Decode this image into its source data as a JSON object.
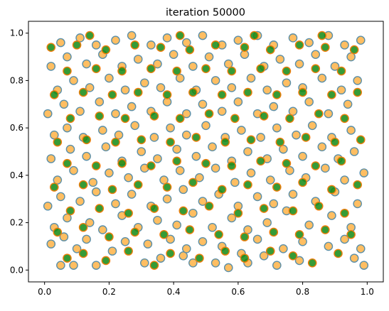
{
  "chart_data": {
    "type": "scatter",
    "title": "iteration 50000",
    "xlabel": "",
    "ylabel": "",
    "xlim": [
      -0.05,
      1.05
    ],
    "ylim": [
      -0.05,
      1.05
    ],
    "xticks": [
      0.0,
      0.2,
      0.4,
      0.6,
      0.8,
      1.0
    ],
    "yticks": [
      0.0,
      0.2,
      0.4,
      0.6,
      0.8,
      1.0
    ],
    "xtick_labels": [
      "0.0",
      "0.2",
      "0.4",
      "0.6",
      "0.8",
      "1.0"
    ],
    "ytick_labels": [
      "0.0",
      "0.2",
      "0.4",
      "0.6",
      "0.8",
      "1.0"
    ],
    "grid": false,
    "legend": "none",
    "point_count": 1000,
    "series": [
      {
        "marker_fill": "#ffb347",
        "marker_edge": "#5b8fa8",
        "values": [
          [
            0.05,
            0.02
          ],
          [
            0.09,
            0.02
          ],
          [
            0.16,
            0.02
          ],
          [
            0.31,
            0.03
          ],
          [
            0.36,
            0.05
          ],
          [
            0.43,
            0.06
          ],
          [
            0.46,
            0.03
          ],
          [
            0.53,
            0.03
          ],
          [
            0.57,
            0.01
          ],
          [
            0.63,
            0.03
          ],
          [
            0.68,
            0.06
          ],
          [
            0.72,
            0.02
          ],
          [
            0.79,
            0.04
          ],
          [
            0.96,
            0.05
          ],
          [
            0.99,
            0.02
          ],
          [
            0.02,
            0.11
          ],
          [
            0.06,
            0.14
          ],
          [
            0.1,
            0.09
          ],
          [
            0.13,
            0.13
          ],
          [
            0.21,
            0.08
          ],
          [
            0.25,
            0.12
          ],
          [
            0.32,
            0.11
          ],
          [
            0.39,
            0.13
          ],
          [
            0.44,
            0.09
          ],
          [
            0.49,
            0.12
          ],
          [
            0.55,
            0.1
          ],
          [
            0.61,
            0.07
          ],
          [
            0.66,
            0.13
          ],
          [
            0.74,
            0.09
          ],
          [
            0.8,
            0.12
          ],
          [
            0.88,
            0.1
          ],
          [
            0.93,
            0.13
          ],
          [
            0.98,
            0.09
          ],
          [
            0.03,
            0.18
          ],
          [
            0.07,
            0.22
          ],
          [
            0.14,
            0.2
          ],
          [
            0.18,
            0.17
          ],
          [
            0.24,
            0.23
          ],
          [
            0.29,
            0.18
          ],
          [
            0.35,
            0.21
          ],
          [
            0.41,
            0.19
          ],
          [
            0.46,
            0.24
          ],
          [
            0.52,
            0.18
          ],
          [
            0.58,
            0.22
          ],
          [
            0.63,
            0.17
          ],
          [
            0.69,
            0.2
          ],
          [
            0.75,
            0.25
          ],
          [
            0.82,
            0.19
          ],
          [
            0.89,
            0.23
          ],
          [
            0.95,
            0.18
          ],
          [
            0.01,
            0.27
          ],
          [
            0.05,
            0.31
          ],
          [
            0.11,
            0.29
          ],
          [
            0.16,
            0.33
          ],
          [
            0.22,
            0.28
          ],
          [
            0.27,
            0.32
          ],
          [
            0.33,
            0.27
          ],
          [
            0.38,
            0.3
          ],
          [
            0.43,
            0.34
          ],
          [
            0.49,
            0.29
          ],
          [
            0.54,
            0.32
          ],
          [
            0.6,
            0.27
          ],
          [
            0.66,
            0.31
          ],
          [
            0.71,
            0.28
          ],
          [
            0.77,
            0.32
          ],
          [
            0.84,
            0.29
          ],
          [
            0.9,
            0.33
          ],
          [
            0.97,
            0.28
          ],
          [
            0.04,
            0.38
          ],
          [
            0.09,
            0.42
          ],
          [
            0.15,
            0.37
          ],
          [
            0.2,
            0.41
          ],
          [
            0.26,
            0.39
          ],
          [
            0.31,
            0.43
          ],
          [
            0.37,
            0.38
          ],
          [
            0.42,
            0.42
          ],
          [
            0.48,
            0.39
          ],
          [
            0.53,
            0.43
          ],
          [
            0.59,
            0.37
          ],
          [
            0.64,
            0.41
          ],
          [
            0.7,
            0.38
          ],
          [
            0.76,
            0.42
          ],
          [
            0.81,
            0.39
          ],
          [
            0.87,
            0.43
          ],
          [
            0.93,
            0.38
          ],
          [
            0.99,
            0.41
          ],
          [
            0.02,
            0.47
          ],
          [
            0.08,
            0.51
          ],
          [
            0.13,
            0.48
          ],
          [
            0.19,
            0.52
          ],
          [
            0.24,
            0.46
          ],
          [
            0.3,
            0.5
          ],
          [
            0.35,
            0.47
          ],
          [
            0.41,
            0.51
          ],
          [
            0.47,
            0.48
          ],
          [
            0.52,
            0.52
          ],
          [
            0.58,
            0.46
          ],
          [
            0.63,
            0.5
          ],
          [
            0.69,
            0.47
          ],
          [
            0.74,
            0.51
          ],
          [
            0.8,
            0.48
          ],
          [
            0.86,
            0.52
          ],
          [
            0.91,
            0.47
          ],
          [
            0.96,
            0.5
          ],
          [
            0.03,
            0.57
          ],
          [
            0.07,
            0.6
          ],
          [
            0.12,
            0.56
          ],
          [
            0.18,
            0.59
          ],
          [
            0.23,
            0.57
          ],
          [
            0.28,
            0.61
          ],
          [
            0.34,
            0.56
          ],
          [
            0.39,
            0.6
          ],
          [
            0.44,
            0.57
          ],
          [
            0.5,
            0.61
          ],
          [
            0.56,
            0.56
          ],
          [
            0.61,
            0.59
          ],
          [
            0.67,
            0.56
          ],
          [
            0.72,
            0.6
          ],
          [
            0.78,
            0.57
          ],
          [
            0.83,
            0.61
          ],
          [
            0.89,
            0.56
          ],
          [
            0.95,
            0.59
          ],
          [
            0.01,
            0.66
          ],
          [
            0.06,
            0.7
          ],
          [
            0.11,
            0.67
          ],
          [
            0.17,
            0.71
          ],
          [
            0.22,
            0.66
          ],
          [
            0.27,
            0.69
          ],
          [
            0.33,
            0.67
          ],
          [
            0.38,
            0.71
          ],
          [
            0.44,
            0.66
          ],
          [
            0.49,
            0.7
          ],
          [
            0.55,
            0.67
          ],
          [
            0.6,
            0.71
          ],
          [
            0.66,
            0.66
          ],
          [
            0.71,
            0.69
          ],
          [
            0.77,
            0.67
          ],
          [
            0.82,
            0.71
          ],
          [
            0.88,
            0.66
          ],
          [
            0.94,
            0.7
          ],
          [
            0.04,
            0.76
          ],
          [
            0.09,
            0.8
          ],
          [
            0.14,
            0.77
          ],
          [
            0.2,
            0.81
          ],
          [
            0.25,
            0.76
          ],
          [
            0.31,
            0.79
          ],
          [
            0.36,
            0.77
          ],
          [
            0.42,
            0.81
          ],
          [
            0.47,
            0.76
          ],
          [
            0.53,
            0.8
          ],
          [
            0.58,
            0.77
          ],
          [
            0.64,
            0.81
          ],
          [
            0.69,
            0.76
          ],
          [
            0.75,
            0.79
          ],
          [
            0.8,
            0.77
          ],
          [
            0.86,
            0.81
          ],
          [
            0.92,
            0.76
          ],
          [
            0.97,
            0.8
          ],
          [
            0.02,
            0.86
          ],
          [
            0.07,
            0.9
          ],
          [
            0.13,
            0.87
          ],
          [
            0.18,
            0.91
          ],
          [
            0.24,
            0.86
          ],
          [
            0.29,
            0.89
          ],
          [
            0.35,
            0.87
          ],
          [
            0.4,
            0.91
          ],
          [
            0.46,
            0.86
          ],
          [
            0.51,
            0.9
          ],
          [
            0.57,
            0.87
          ],
          [
            0.62,
            0.91
          ],
          [
            0.68,
            0.86
          ],
          [
            0.73,
            0.89
          ],
          [
            0.79,
            0.87
          ],
          [
            0.84,
            0.91
          ],
          [
            0.9,
            0.86
          ],
          [
            0.95,
            0.9
          ],
          [
            0.05,
            0.96
          ],
          [
            0.11,
            0.98
          ],
          [
            0.16,
            0.95
          ],
          [
            0.22,
            0.97
          ],
          [
            0.27,
            0.99
          ],
          [
            0.33,
            0.95
          ],
          [
            0.38,
            0.98
          ],
          [
            0.44,
            0.96
          ],
          [
            0.49,
            0.99
          ],
          [
            0.55,
            0.95
          ],
          [
            0.6,
            0.97
          ],
          [
            0.66,
            0.99
          ],
          [
            0.71,
            0.95
          ],
          [
            0.77,
            0.98
          ],
          [
            0.82,
            0.96
          ],
          [
            0.88,
            0.99
          ],
          [
            0.93,
            0.95
          ],
          [
            0.98,
            0.97
          ]
        ]
      },
      {
        "marker_fill": "#138a13",
        "marker_edge": "#f07d0a",
        "values": [
          [
            0.07,
            0.05
          ],
          [
            0.12,
            0.07
          ],
          [
            0.19,
            0.04
          ],
          [
            0.26,
            0.08
          ],
          [
            0.34,
            0.02
          ],
          [
            0.39,
            0.07
          ],
          [
            0.48,
            0.05
          ],
          [
            0.56,
            0.08
          ],
          [
            0.62,
            0.05
          ],
          [
            0.7,
            0.08
          ],
          [
            0.77,
            0.06
          ],
          [
            0.83,
            0.03
          ],
          [
            0.91,
            0.07
          ],
          [
            0.04,
            0.16
          ],
          [
            0.12,
            0.18
          ],
          [
            0.2,
            0.14
          ],
          [
            0.28,
            0.16
          ],
          [
            0.37,
            0.15
          ],
          [
            0.45,
            0.17
          ],
          [
            0.54,
            0.15
          ],
          [
            0.62,
            0.14
          ],
          [
            0.71,
            0.16
          ],
          [
            0.79,
            0.15
          ],
          [
            0.87,
            0.17
          ],
          [
            0.95,
            0.15
          ],
          [
            0.08,
            0.25
          ],
          [
            0.17,
            0.26
          ],
          [
            0.26,
            0.24
          ],
          [
            0.34,
            0.26
          ],
          [
            0.43,
            0.25
          ],
          [
            0.51,
            0.27
          ],
          [
            0.6,
            0.24
          ],
          [
            0.68,
            0.26
          ],
          [
            0.77,
            0.25
          ],
          [
            0.85,
            0.27
          ],
          [
            0.93,
            0.24
          ],
          [
            0.03,
            0.35
          ],
          [
            0.12,
            0.36
          ],
          [
            0.21,
            0.34
          ],
          [
            0.29,
            0.36
          ],
          [
            0.38,
            0.35
          ],
          [
            0.46,
            0.37
          ],
          [
            0.55,
            0.34
          ],
          [
            0.63,
            0.36
          ],
          [
            0.72,
            0.35
          ],
          [
            0.8,
            0.37
          ],
          [
            0.89,
            0.34
          ],
          [
            0.97,
            0.36
          ],
          [
            0.07,
            0.45
          ],
          [
            0.16,
            0.44
          ],
          [
            0.24,
            0.45
          ],
          [
            0.33,
            0.44
          ],
          [
            0.41,
            0.46
          ],
          [
            0.5,
            0.45
          ],
          [
            0.58,
            0.44
          ],
          [
            0.67,
            0.46
          ],
          [
            0.75,
            0.45
          ],
          [
            0.84,
            0.44
          ],
          [
            0.92,
            0.46
          ],
          [
            0.04,
            0.54
          ],
          [
            0.13,
            0.55
          ],
          [
            0.22,
            0.54
          ],
          [
            0.3,
            0.55
          ],
          [
            0.39,
            0.54
          ],
          [
            0.47,
            0.56
          ],
          [
            0.56,
            0.54
          ],
          [
            0.64,
            0.55
          ],
          [
            0.73,
            0.54
          ],
          [
            0.81,
            0.56
          ],
          [
            0.9,
            0.54
          ],
          [
            0.98,
            0.55
          ],
          [
            0.08,
            0.64
          ],
          [
            0.17,
            0.65
          ],
          [
            0.25,
            0.64
          ],
          [
            0.34,
            0.65
          ],
          [
            0.42,
            0.64
          ],
          [
            0.51,
            0.66
          ],
          [
            0.59,
            0.64
          ],
          [
            0.68,
            0.65
          ],
          [
            0.76,
            0.64
          ],
          [
            0.85,
            0.66
          ],
          [
            0.93,
            0.64
          ],
          [
            0.03,
            0.74
          ],
          [
            0.12,
            0.75
          ],
          [
            0.21,
            0.74
          ],
          [
            0.29,
            0.75
          ],
          [
            0.38,
            0.74
          ],
          [
            0.46,
            0.75
          ],
          [
            0.55,
            0.74
          ],
          [
            0.63,
            0.75
          ],
          [
            0.72,
            0.74
          ],
          [
            0.8,
            0.75
          ],
          [
            0.89,
            0.74
          ],
          [
            0.97,
            0.75
          ],
          [
            0.07,
            0.84
          ],
          [
            0.16,
            0.85
          ],
          [
            0.24,
            0.84
          ],
          [
            0.33,
            0.85
          ],
          [
            0.41,
            0.84
          ],
          [
            0.5,
            0.85
          ],
          [
            0.58,
            0.84
          ],
          [
            0.67,
            0.85
          ],
          [
            0.75,
            0.84
          ],
          [
            0.84,
            0.85
          ],
          [
            0.92,
            0.84
          ],
          [
            0.02,
            0.94
          ],
          [
            0.1,
            0.95
          ],
          [
            0.19,
            0.93
          ],
          [
            0.28,
            0.95
          ],
          [
            0.36,
            0.94
          ],
          [
            0.45,
            0.93
          ],
          [
            0.53,
            0.95
          ],
          [
            0.62,
            0.94
          ],
          [
            0.7,
            0.93
          ],
          [
            0.79,
            0.95
          ],
          [
            0.87,
            0.94
          ],
          [
            0.96,
            0.93
          ],
          [
            0.14,
            0.99
          ],
          [
            0.42,
            0.99
          ],
          [
            0.65,
            0.99
          ],
          [
            0.86,
            0.99
          ]
        ]
      }
    ]
  }
}
